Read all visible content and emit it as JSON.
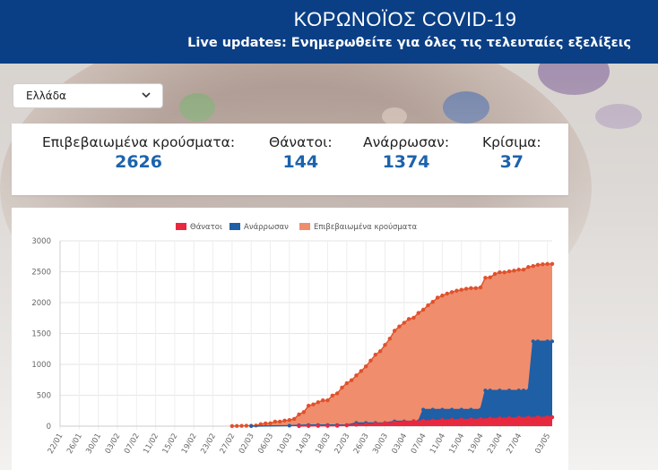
{
  "header": {
    "title": "ΚΟΡΩΝΟΪΟΣ COVID-19",
    "subtitle": "Live updates: Ενημερωθείτε για όλες τις τελευταίες εξελίξεις"
  },
  "country_select": {
    "value": "Ελλάδα"
  },
  "stats": [
    {
      "label": "Επιβεβαιωμένα κρούσματα:",
      "value": "2626"
    },
    {
      "label": "Θάνατοι:",
      "value": "144"
    },
    {
      "label": "Ανάρρωσαν:",
      "value": "1374"
    },
    {
      "label": "Κρίσιμα:",
      "value": "37"
    }
  ],
  "colors": {
    "header_bg": "#0b3f85",
    "stat_number": "#1c63ac",
    "deaths": "#e8283e",
    "recovered": "#1f5fa6",
    "confirmed_fill": "#ef8d6c",
    "confirmed_line": "#e0512c"
  },
  "chart_data": {
    "type": "area",
    "xlabel": "",
    "ylabel": "",
    "ylim": [
      0,
      3000
    ],
    "yticks": [
      0,
      500,
      1000,
      1500,
      2000,
      2500,
      3000
    ],
    "grid": true,
    "legend_position": "top-center",
    "x_start_day": 22,
    "x_end_day": 125,
    "x_ticks": [
      {
        "label": "22/01",
        "day": 22
      },
      {
        "label": "26/01",
        "day": 26
      },
      {
        "label": "30/01",
        "day": 30
      },
      {
        "label": "03/02",
        "day": 34
      },
      {
        "label": "07/02",
        "day": 38
      },
      {
        "label": "11/02",
        "day": 42
      },
      {
        "label": "15/02",
        "day": 46
      },
      {
        "label": "19/02",
        "day": 50
      },
      {
        "label": "23/02",
        "day": 54
      },
      {
        "label": "27/02",
        "day": 58
      },
      {
        "label": "02/03",
        "day": 62
      },
      {
        "label": "06/03",
        "day": 66
      },
      {
        "label": "10/03",
        "day": 70
      },
      {
        "label": "14/03",
        "day": 74
      },
      {
        "label": "18/03",
        "day": 78
      },
      {
        "label": "22/03",
        "day": 82
      },
      {
        "label": "26/03",
        "day": 86
      },
      {
        "label": "30/03",
        "day": 90
      },
      {
        "label": "03/04",
        "day": 94
      },
      {
        "label": "07/04",
        "day": 98
      },
      {
        "label": "11/04",
        "day": 102
      },
      {
        "label": "15/04",
        "day": 106
      },
      {
        "label": "19/04",
        "day": 110
      },
      {
        "label": "23/04",
        "day": 114
      },
      {
        "label": "27/04",
        "day": 118
      },
      {
        "label": "03/05",
        "day": 124
      }
    ],
    "series": [
      {
        "name": "Θάνατοι",
        "key": "deaths",
        "points": [
          [
            72,
            1
          ],
          [
            74,
            3
          ],
          [
            76,
            4
          ],
          [
            78,
            5
          ],
          [
            80,
            6
          ],
          [
            82,
            13
          ],
          [
            84,
            22
          ],
          [
            86,
            28
          ],
          [
            88,
            38
          ],
          [
            90,
            49
          ],
          [
            92,
            59
          ],
          [
            94,
            68
          ],
          [
            96,
            81
          ],
          [
            98,
            86
          ],
          [
            100,
            90
          ],
          [
            102,
            98
          ],
          [
            104,
            102
          ],
          [
            106,
            105
          ],
          [
            108,
            110
          ],
          [
            110,
            113
          ],
          [
            112,
            121
          ],
          [
            114,
            125
          ],
          [
            116,
            130
          ],
          [
            118,
            136
          ],
          [
            120,
            139
          ],
          [
            122,
            142
          ],
          [
            124,
            143
          ],
          [
            125,
            144
          ]
        ]
      },
      {
        "name": "Ανάρρωσαν",
        "key": "recovered",
        "points": [
          [
            62,
            0
          ],
          [
            70,
            8
          ],
          [
            72,
            14
          ],
          [
            74,
            19
          ],
          [
            76,
            19
          ],
          [
            78,
            19
          ],
          [
            80,
            19
          ],
          [
            82,
            19
          ],
          [
            84,
            52
          ],
          [
            86,
            52
          ],
          [
            88,
            52
          ],
          [
            90,
            52
          ],
          [
            92,
            78
          ],
          [
            94,
            78
          ],
          [
            96,
            78
          ],
          [
            97,
            78
          ],
          [
            98,
            269
          ],
          [
            100,
            269
          ],
          [
            102,
            269
          ],
          [
            104,
            269
          ],
          [
            106,
            269
          ],
          [
            108,
            269
          ],
          [
            110,
            269
          ],
          [
            111,
            577
          ],
          [
            112,
            577
          ],
          [
            114,
            577
          ],
          [
            116,
            577
          ],
          [
            118,
            577
          ],
          [
            119,
            577
          ],
          [
            120,
            577
          ],
          [
            121,
            1374
          ],
          [
            122,
            1374
          ],
          [
            124,
            1374
          ],
          [
            125,
            1374
          ]
        ]
      },
      {
        "name": "Επιβεβαιωμένα κρούσματα",
        "key": "confirmed",
        "points": [
          [
            58,
            1
          ],
          [
            59,
            3
          ],
          [
            60,
            4
          ],
          [
            61,
            7
          ],
          [
            62,
            7
          ],
          [
            63,
            9
          ],
          [
            64,
            31
          ],
          [
            65,
            45
          ],
          [
            66,
            46
          ],
          [
            67,
            73
          ],
          [
            68,
            73
          ],
          [
            69,
            89
          ],
          [
            70,
            99
          ],
          [
            71,
            117
          ],
          [
            72,
            190
          ],
          [
            73,
            228
          ],
          [
            74,
            331
          ],
          [
            75,
            352
          ],
          [
            76,
            387
          ],
          [
            77,
            418
          ],
          [
            78,
            418
          ],
          [
            79,
            495
          ],
          [
            80,
            530
          ],
          [
            81,
            624
          ],
          [
            82,
            695
          ],
          [
            83,
            743
          ],
          [
            84,
            821
          ],
          [
            85,
            892
          ],
          [
            86,
            966
          ],
          [
            87,
            1061
          ],
          [
            88,
            1156
          ],
          [
            89,
            1212
          ],
          [
            90,
            1314
          ],
          [
            91,
            1415
          ],
          [
            92,
            1544
          ],
          [
            93,
            1613
          ],
          [
            94,
            1673
          ],
          [
            95,
            1735
          ],
          [
            96,
            1755
          ],
          [
            97,
            1832
          ],
          [
            98,
            1884
          ],
          [
            99,
            1955
          ],
          [
            100,
            2011
          ],
          [
            101,
            2081
          ],
          [
            102,
            2114
          ],
          [
            103,
            2145
          ],
          [
            104,
            2170
          ],
          [
            105,
            2192
          ],
          [
            106,
            2207
          ],
          [
            107,
            2224
          ],
          [
            108,
            2235
          ],
          [
            109,
            2235
          ],
          [
            110,
            2245
          ],
          [
            111,
            2401
          ],
          [
            112,
            2408
          ],
          [
            113,
            2463
          ],
          [
            114,
            2490
          ],
          [
            115,
            2490
          ],
          [
            116,
            2506
          ],
          [
            117,
            2517
          ],
          [
            118,
            2534
          ],
          [
            119,
            2534
          ],
          [
            120,
            2576
          ],
          [
            121,
            2591
          ],
          [
            122,
            2612
          ],
          [
            123,
            2620
          ],
          [
            124,
            2626
          ],
          [
            125,
            2626
          ]
        ]
      }
    ]
  }
}
